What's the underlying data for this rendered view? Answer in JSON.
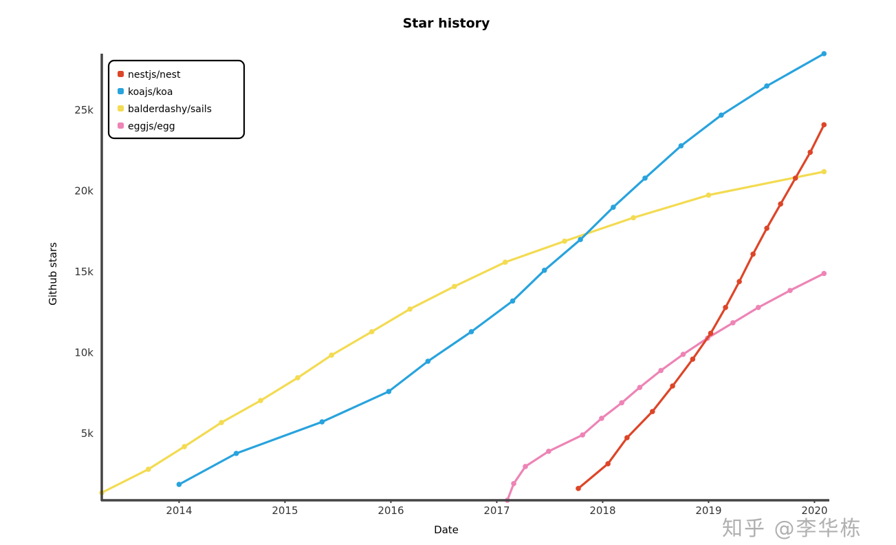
{
  "chart_data": {
    "type": "line",
    "title": "Star history",
    "xlabel": "Date",
    "ylabel": "Github stars",
    "xlim": [
      2013.27,
      2020.14
    ],
    "ylim": [
      870,
      28500
    ],
    "grid": false,
    "legend_placement": "top-left",
    "x_ticks": [
      {
        "value": 2014,
        "label": "2014"
      },
      {
        "value": 2015,
        "label": "2015"
      },
      {
        "value": 2016,
        "label": "2016"
      },
      {
        "value": 2017,
        "label": "2017"
      },
      {
        "value": 2018,
        "label": "2018"
      },
      {
        "value": 2019,
        "label": "2019"
      },
      {
        "value": 2020,
        "label": "2020"
      }
    ],
    "y_ticks": [
      {
        "value": 5000,
        "label": "5k"
      },
      {
        "value": 10000,
        "label": "10k"
      },
      {
        "value": 15000,
        "label": "15k"
      },
      {
        "value": 20000,
        "label": "20k"
      },
      {
        "value": 25000,
        "label": "25k"
      }
    ],
    "series": [
      {
        "name": "nestjs/nest",
        "color": "#dd4528",
        "x": [
          2017.77,
          2018.05,
          2018.23,
          2018.47,
          2018.66,
          2018.85,
          2019.02,
          2019.16,
          2019.29,
          2019.42,
          2019.55,
          2019.68,
          2019.82,
          2019.96,
          2020.09
        ],
        "y": [
          1600,
          3130,
          4740,
          6360,
          7940,
          9600,
          11200,
          12800,
          14400,
          16100,
          17700,
          19200,
          20800,
          22400,
          24100
        ]
      },
      {
        "name": "koajs/koa",
        "color": "#28a3dd",
        "x": [
          2014.0,
          2014.54,
          2015.35,
          2015.98,
          2016.35,
          2016.76,
          2017.15,
          2017.45,
          2017.79,
          2018.1,
          2018.4,
          2018.74,
          2019.12,
          2019.55,
          2020.09
        ],
        "y": [
          1850,
          3770,
          5720,
          7600,
          9470,
          11300,
          13200,
          15100,
          17000,
          19000,
          20800,
          22800,
          24700,
          26500,
          28500
        ]
      },
      {
        "name": "balderdashy/sails",
        "color": "#f3db52",
        "x": [
          2013.27,
          2013.71,
          2014.05,
          2014.4,
          2014.77,
          2015.12,
          2015.44,
          2015.82,
          2016.18,
          2016.6,
          2017.08,
          2017.64,
          2018.29,
          2019.0,
          2020.09
        ],
        "y": [
          1340,
          2790,
          4190,
          5680,
          7040,
          8450,
          9850,
          11300,
          12700,
          14100,
          15600,
          16900,
          18350,
          19750,
          21200
        ]
      },
      {
        "name": "eggjs/egg",
        "color": "#ed84b5",
        "x": [
          2017.1,
          2017.16,
          2017.27,
          2017.49,
          2017.81,
          2017.99,
          2018.18,
          2018.35,
          2018.55,
          2018.76,
          2018.99,
          2019.23,
          2019.47,
          2019.77,
          2020.09
        ],
        "y": [
          870,
          1900,
          2960,
          3900,
          4910,
          5940,
          6900,
          7850,
          8900,
          9900,
          10900,
          11850,
          12800,
          13850,
          14900
        ]
      }
    ]
  },
  "watermark": "知乎 @李华栋"
}
